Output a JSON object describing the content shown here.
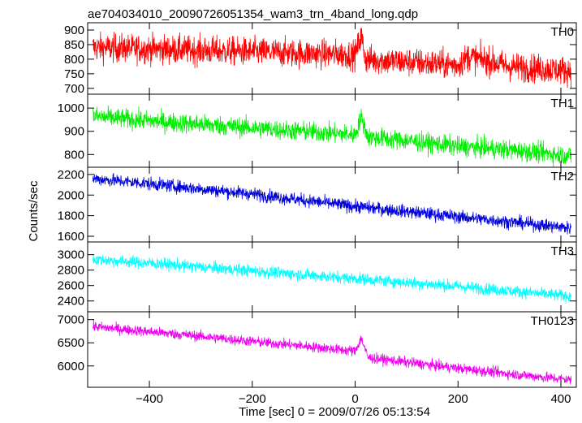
{
  "title": "ae704034010_20090726051354_wam3_trn_4band_long.qdp",
  "ylabel": "Counts/sec",
  "xlabel": "Time [sec] 0 = 2009/07/26 05:13:54",
  "chart_data": {
    "type": "line",
    "title": "ae704034010_20090726051354_wam3_trn_4band_long.qdp",
    "xlabel": "Time [sec] 0 = 2009/07/26 05:13:54",
    "ylabel": "Counts/sec",
    "xlim": [
      -520,
      430
    ],
    "xticks": [
      -400,
      -200,
      0,
      200,
      400
    ],
    "xtick_labels": [
      "−400",
      "−200",
      "0",
      "200",
      "400"
    ],
    "grid": false,
    "legend": "none",
    "panels": [
      {
        "name": "TH0",
        "color": "#ff0000",
        "ylim": [
          680,
          925
        ],
        "yticks": [
          700,
          750,
          800,
          850,
          900
        ],
        "ytick_labels": [
          "700",
          "750",
          "800",
          "850",
          "900"
        ],
        "x": [
          -510,
          -400,
          -300,
          -200,
          -100,
          0,
          12,
          20,
          100,
          200,
          220,
          300,
          420
        ],
        "y": [
          840,
          835,
          830,
          825,
          820,
          815,
          880,
          800,
          790,
          780,
          810,
          775,
          760
        ],
        "noise": 35
      },
      {
        "name": "TH1",
        "color": "#00ee00",
        "ylim": [
          745,
          1060
        ],
        "yticks": [
          800,
          900,
          1000
        ],
        "ytick_labels": [
          "800",
          "900",
          "1000"
        ],
        "x": [
          -510,
          -400,
          -300,
          -200,
          -100,
          0,
          12,
          25,
          100,
          200,
          300,
          420
        ],
        "y": [
          965,
          945,
          930,
          915,
          900,
          885,
          960,
          875,
          860,
          835,
          820,
          795
        ],
        "noise": 30
      },
      {
        "name": "TH2",
        "color": "#0000dd",
        "ylim": [
          1545,
          2270
        ],
        "yticks": [
          1600,
          1800,
          2000,
          2200
        ],
        "ytick_labels": [
          "1600",
          "1800",
          "2000",
          "2200"
        ],
        "x": [
          -510,
          -400,
          -300,
          -200,
          -100,
          0,
          100,
          200,
          300,
          420
        ],
        "y": [
          2160,
          2110,
          2060,
          2010,
          1950,
          1890,
          1840,
          1790,
          1740,
          1680
        ],
        "noise": 45
      },
      {
        "name": "TH3",
        "color": "#00ffff",
        "ylim": [
          2260,
          3165
        ],
        "yticks": [
          2400,
          2600,
          2800,
          3000
        ],
        "ytick_labels": [
          "2400",
          "2600",
          "2800",
          "3000"
        ],
        "x": [
          -510,
          -400,
          -300,
          -200,
          -100,
          0,
          100,
          200,
          300,
          420
        ],
        "y": [
          2940,
          2890,
          2840,
          2790,
          2740,
          2690,
          2640,
          2590,
          2530,
          2460
        ],
        "noise": 55
      },
      {
        "name": "TH0123",
        "color": "#ee00ee",
        "ylim": [
          5540,
          7170
        ],
        "yticks": [
          6000,
          6500,
          7000
        ],
        "ytick_labels": [
          "6000",
          "6500",
          "7000"
        ],
        "x": [
          -510,
          -400,
          -300,
          -200,
          -100,
          0,
          12,
          25,
          100,
          200,
          300,
          420
        ],
        "y": [
          6850,
          6740,
          6640,
          6530,
          6430,
          6320,
          6600,
          6180,
          6080,
          5950,
          5830,
          5700
        ],
        "noise": 80
      }
    ]
  }
}
